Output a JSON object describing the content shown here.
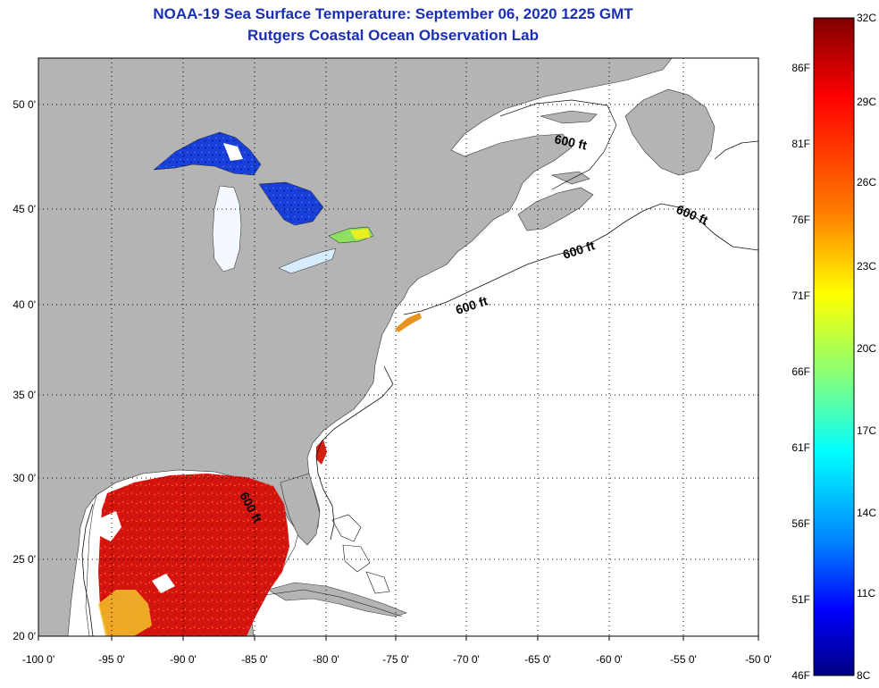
{
  "header": {
    "title_line1": "NOAA-19 Sea Surface Temperature:  September 06, 2020 1225 GMT",
    "title_line2": "Rutgers Coastal Ocean Observation Lab"
  },
  "map": {
    "lon_ticks": [
      "-100 0'",
      "-95 0'",
      "-90 0'",
      "-85 0'",
      "-80 0'",
      "-75 0'",
      "-70 0'",
      "-65 0'",
      "-60 0'",
      "-55 0'",
      "-50 0'"
    ],
    "lat_ticks": [
      "50 0'",
      "45 0'",
      "40 0'",
      "35 0'",
      "30 0'",
      "25 0'",
      "20 0'"
    ],
    "contour_labels": [
      "600 ft",
      "600 ft",
      "600 ft",
      "600 ft",
      "600 ft"
    ],
    "land_color": "#b4b4b4",
    "ocean_color": "#ffffff"
  },
  "colorbar": {
    "celsius": [
      "32C",
      "29C",
      "26C",
      "23C",
      "20C",
      "17C",
      "14C",
      "11C",
      "8C"
    ],
    "fahrenheit": [
      "86F",
      "81F",
      "76F",
      "71F",
      "66F",
      "61F",
      "56F",
      "51F",
      "46F"
    ],
    "colors": [
      "#800000",
      "#ff0000",
      "#ff8000",
      "#ffff00",
      "#80ff80",
      "#00ffff",
      "#0080ff",
      "#0000ff",
      "#000080"
    ]
  }
}
